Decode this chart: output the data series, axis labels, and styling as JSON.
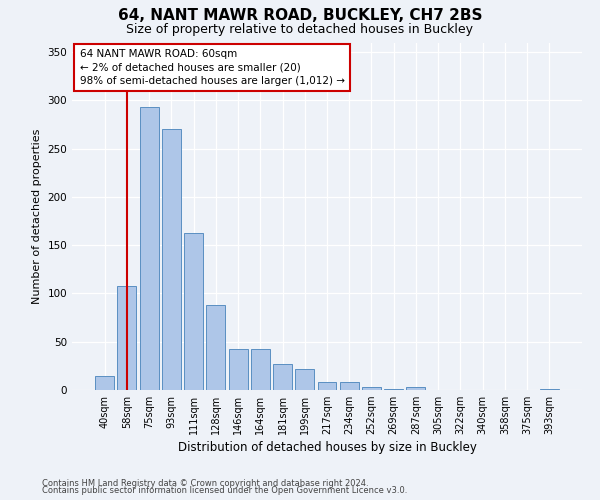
{
  "title1": "64, NANT MAWR ROAD, BUCKLEY, CH7 2BS",
  "title2": "Size of property relative to detached houses in Buckley",
  "xlabel": "Distribution of detached houses by size in Buckley",
  "ylabel": "Number of detached properties",
  "bar_labels": [
    "40sqm",
    "58sqm",
    "75sqm",
    "93sqm",
    "111sqm",
    "128sqm",
    "146sqm",
    "164sqm",
    "181sqm",
    "199sqm",
    "217sqm",
    "234sqm",
    "252sqm",
    "269sqm",
    "287sqm",
    "305sqm",
    "322sqm",
    "340sqm",
    "358sqm",
    "375sqm",
    "393sqm"
  ],
  "bar_values": [
    15,
    108,
    293,
    270,
    163,
    88,
    42,
    42,
    27,
    22,
    8,
    8,
    3,
    1,
    3,
    0,
    0,
    0,
    0,
    0,
    1
  ],
  "bar_color": "#aec6e8",
  "bar_edge_color": "#5a8fc2",
  "vline_x": 1,
  "vline_color": "#cc0000",
  "annotation_line1": "64 NANT MAWR ROAD: 60sqm",
  "annotation_line2": "← 2% of detached houses are smaller (20)",
  "annotation_line3": "98% of semi-detached houses are larger (1,012) →",
  "annotation_box_facecolor": "#ffffff",
  "annotation_box_edgecolor": "#cc0000",
  "footer1": "Contains HM Land Registry data © Crown copyright and database right 2024.",
  "footer2": "Contains public sector information licensed under the Open Government Licence v3.0.",
  "ylim": [
    0,
    360
  ],
  "yticks": [
    0,
    50,
    100,
    150,
    200,
    250,
    300,
    350
  ],
  "background_color": "#eef2f8",
  "title1_fontsize": 11,
  "title2_fontsize": 9,
  "ylabel_fontsize": 8,
  "xlabel_fontsize": 8.5,
  "tick_fontsize": 7.5,
  "xtick_fontsize": 7,
  "annotation_fontsize": 7.5,
  "footer_fontsize": 6
}
